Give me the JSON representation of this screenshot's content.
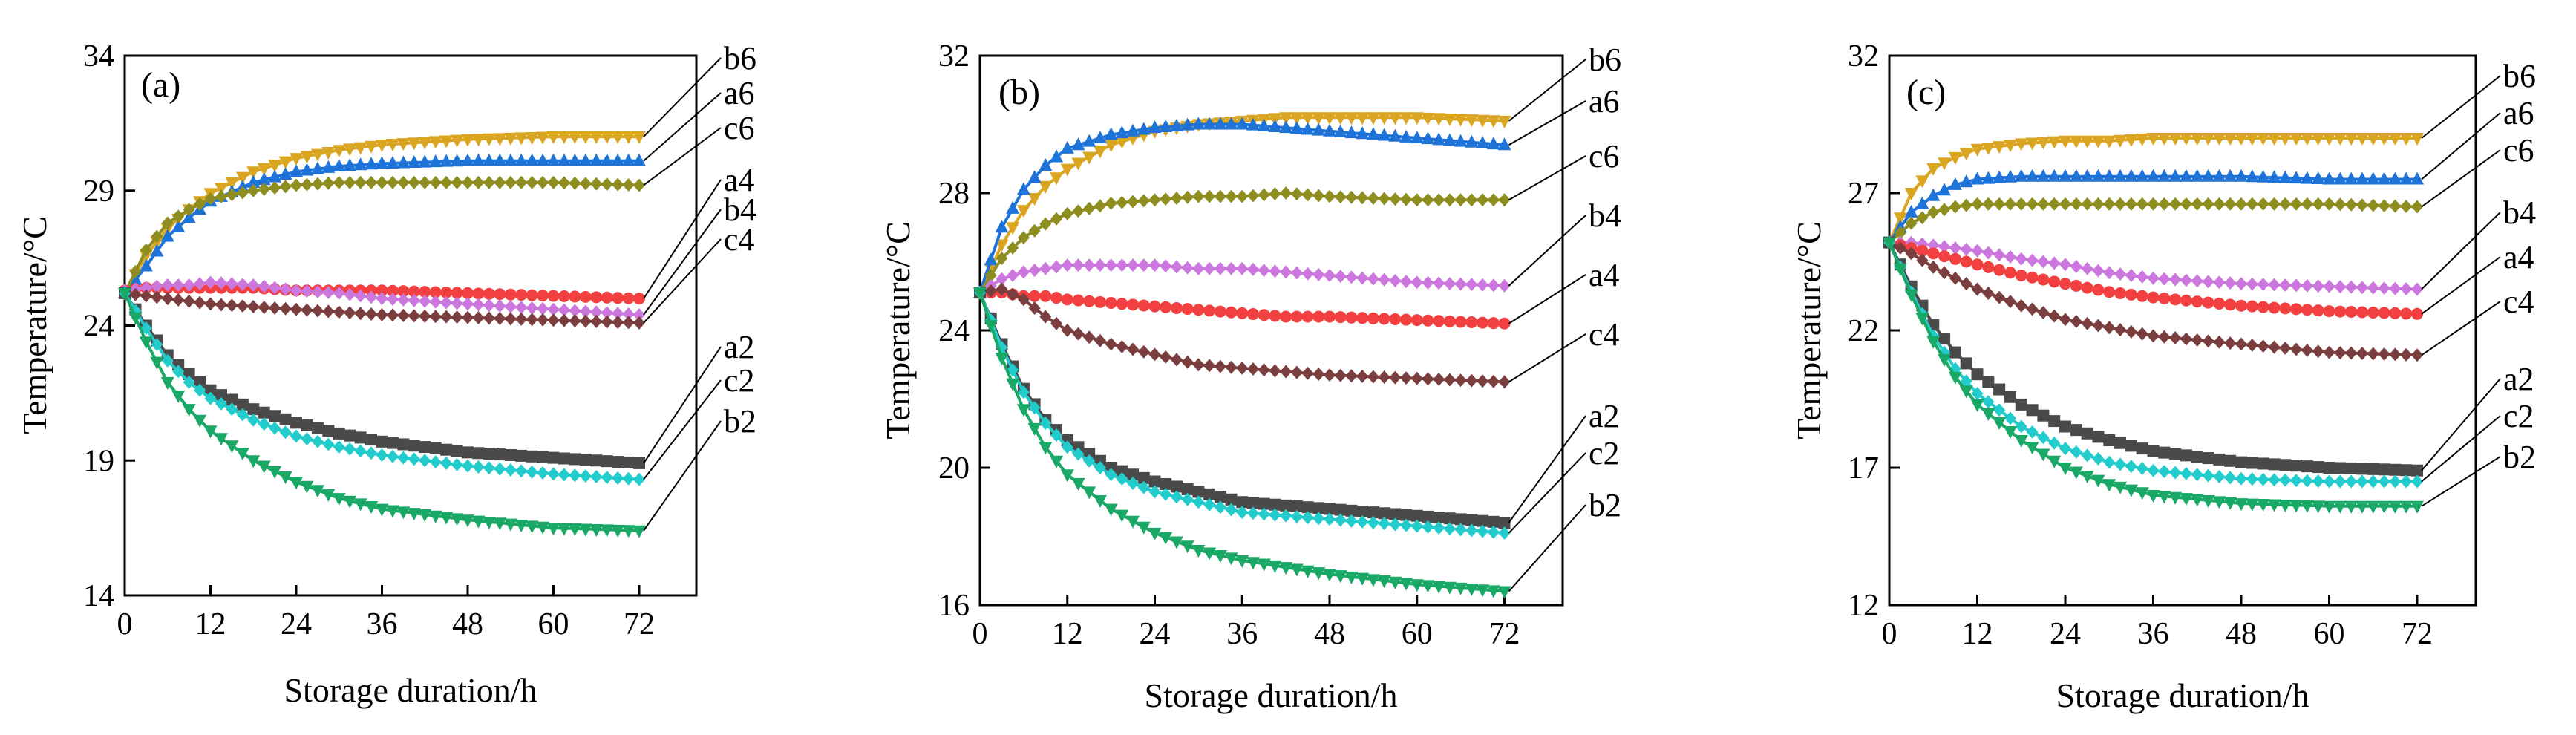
{
  "chart_data": [
    {
      "type": "line",
      "panel_label": "(a)",
      "xlabel": "Storage duration/h",
      "ylabel": "Temperature/°C",
      "xlim": [
        0,
        80
      ],
      "ylim": [
        14,
        34
      ],
      "xticks": [
        "0",
        "12",
        "24",
        "36",
        "48",
        "60",
        "72"
      ],
      "yticks": [
        "14",
        "19",
        "24",
        "29",
        "34"
      ],
      "x": [
        0,
        3,
        6,
        9,
        12,
        18,
        24,
        30,
        36,
        48,
        60,
        72
      ],
      "series": [
        {
          "name": "b6",
          "color": "#DAA520",
          "marker": "tri-down",
          "values": [
            25.2,
            26.6,
            27.6,
            28.3,
            28.9,
            29.7,
            30.2,
            30.5,
            30.7,
            30.9,
            31.0,
            31.0
          ]
        },
        {
          "name": "a6",
          "color": "#1E73D8",
          "marker": "tri-up",
          "values": [
            25.2,
            26.2,
            27.3,
            28.0,
            28.6,
            29.3,
            29.7,
            29.9,
            30.0,
            30.1,
            30.1,
            30.1
          ]
        },
        {
          "name": "c6",
          "color": "#8E8E20",
          "marker": "diamond",
          "values": [
            25.2,
            26.8,
            27.8,
            28.3,
            28.7,
            29.0,
            29.2,
            29.3,
            29.3,
            29.3,
            29.3,
            29.2
          ]
        },
        {
          "name": "a4",
          "color": "#F23F3F",
          "marker": "circle",
          "values": [
            25.3,
            25.4,
            25.4,
            25.4,
            25.4,
            25.4,
            25.3,
            25.3,
            25.3,
            25.2,
            25.1,
            25.0
          ]
        },
        {
          "name": "b4",
          "color": "#CC77DD",
          "marker": "diamond",
          "values": [
            25.3,
            25.4,
            25.5,
            25.5,
            25.6,
            25.5,
            25.3,
            25.2,
            25.0,
            24.8,
            24.6,
            24.4
          ]
        },
        {
          "name": "c4",
          "color": "#7A3E3E",
          "marker": "diamond",
          "values": [
            25.2,
            25.1,
            25.0,
            24.9,
            24.8,
            24.7,
            24.6,
            24.5,
            24.4,
            24.3,
            24.2,
            24.1
          ]
        },
        {
          "name": "a2",
          "color": "#4A4A4A",
          "marker": "square",
          "values": [
            25.2,
            24.0,
            22.9,
            22.2,
            21.6,
            20.9,
            20.4,
            20.0,
            19.7,
            19.3,
            19.1,
            18.9
          ]
        },
        {
          "name": "c2",
          "color": "#22CCCC",
          "marker": "diamond",
          "values": [
            25.2,
            23.9,
            22.7,
            21.9,
            21.3,
            20.5,
            19.9,
            19.5,
            19.2,
            18.8,
            18.5,
            18.3
          ]
        },
        {
          "name": "b2",
          "color": "#19A866",
          "marker": "tri-down",
          "values": [
            25.2,
            23.4,
            21.9,
            20.9,
            20.1,
            19.0,
            18.2,
            17.6,
            17.2,
            16.8,
            16.5,
            16.4
          ]
        }
      ]
    },
    {
      "type": "line",
      "panel_label": "(b)",
      "xlabel": "Storage duration/h",
      "ylabel": "Temperature/°C",
      "xlim": [
        0,
        80
      ],
      "ylim": [
        16,
        32
      ],
      "xticks": [
        "0",
        "12",
        "24",
        "36",
        "48",
        "60",
        "72"
      ],
      "yticks": [
        "16",
        "20",
        "24",
        "28",
        "32"
      ],
      "x": [
        0,
        3,
        6,
        9,
        12,
        18,
        24,
        30,
        36,
        42,
        48,
        60,
        72
      ],
      "series": [
        {
          "name": "b6",
          "color": "#DAA520",
          "marker": "tri-down",
          "values": [
            25.1,
            26.5,
            27.5,
            28.2,
            28.7,
            29.4,
            29.8,
            30.0,
            30.1,
            30.2,
            30.2,
            30.2,
            30.1
          ]
        },
        {
          "name": "a6",
          "color": "#1E73D8",
          "marker": "tri-up",
          "values": [
            25.1,
            27.0,
            28.1,
            28.8,
            29.3,
            29.7,
            29.9,
            30.0,
            30.0,
            29.9,
            29.8,
            29.6,
            29.4
          ]
        },
        {
          "name": "c6",
          "color": "#8E8E20",
          "marker": "diamond",
          "values": [
            25.1,
            26.1,
            26.7,
            27.1,
            27.4,
            27.7,
            27.8,
            27.9,
            27.9,
            28.0,
            27.9,
            27.8,
            27.8
          ]
        },
        {
          "name": "b4",
          "color": "#CC77DD",
          "marker": "diamond",
          "values": [
            25.1,
            25.5,
            25.7,
            25.8,
            25.9,
            25.9,
            25.9,
            25.8,
            25.8,
            25.7,
            25.6,
            25.4,
            25.3
          ]
        },
        {
          "name": "a4",
          "color": "#F23F3F",
          "marker": "circle",
          "values": [
            25.1,
            25.1,
            25.0,
            25.0,
            24.9,
            24.8,
            24.7,
            24.6,
            24.5,
            24.4,
            24.4,
            24.3,
            24.2
          ]
        },
        {
          "name": "c4",
          "color": "#7A3E3E",
          "marker": "diamond",
          "values": [
            25.1,
            25.2,
            24.9,
            24.4,
            24.0,
            23.6,
            23.3,
            23.0,
            22.9,
            22.8,
            22.7,
            22.6,
            22.5
          ]
        },
        {
          "name": "a2",
          "color": "#4A4A4A",
          "marker": "square",
          "values": [
            25.1,
            23.6,
            22.3,
            21.4,
            20.8,
            20.0,
            19.6,
            19.3,
            19.0,
            18.9,
            18.8,
            18.6,
            18.4
          ]
        },
        {
          "name": "c2",
          "color": "#22CCCC",
          "marker": "diamond",
          "values": [
            25.1,
            23.5,
            22.2,
            21.3,
            20.6,
            19.8,
            19.3,
            19.0,
            18.7,
            18.6,
            18.5,
            18.3,
            18.1
          ]
        },
        {
          "name": "b2",
          "color": "#19A866",
          "marker": "tri-down",
          "values": [
            25.1,
            23.2,
            21.7,
            20.6,
            19.8,
            18.8,
            18.1,
            17.6,
            17.3,
            17.1,
            16.9,
            16.6,
            16.4
          ]
        }
      ]
    },
    {
      "type": "line",
      "panel_label": "(c)",
      "xlabel": "Storage duration/h",
      "ylabel": "Temperature/°C",
      "xlim": [
        0,
        80
      ],
      "ylim": [
        12,
        32
      ],
      "xticks": [
        "0",
        "12",
        "24",
        "36",
        "48",
        "60",
        "72"
      ],
      "yticks": [
        "12",
        "17",
        "22",
        "27",
        "32"
      ],
      "x": [
        0,
        3,
        6,
        9,
        12,
        18,
        24,
        30,
        36,
        48,
        60,
        72
      ],
      "series": [
        {
          "name": "b6",
          "color": "#DAA520",
          "marker": "tri-down",
          "values": [
            25.2,
            27.0,
            27.9,
            28.3,
            28.6,
            28.8,
            28.9,
            28.9,
            29.0,
            29.0,
            29.0,
            29.0
          ]
        },
        {
          "name": "a6",
          "color": "#1E73D8",
          "marker": "tri-up",
          "values": [
            25.2,
            26.3,
            26.9,
            27.3,
            27.5,
            27.6,
            27.6,
            27.6,
            27.6,
            27.6,
            27.5,
            27.5
          ]
        },
        {
          "name": "c6",
          "color": "#8E8E20",
          "marker": "diamond",
          "values": [
            25.2,
            25.9,
            26.3,
            26.5,
            26.6,
            26.6,
            26.6,
            26.6,
            26.6,
            26.6,
            26.6,
            26.5
          ]
        },
        {
          "name": "b4",
          "color": "#CC77DD",
          "marker": "diamond",
          "values": [
            25.2,
            25.2,
            25.1,
            25.0,
            24.9,
            24.6,
            24.4,
            24.1,
            23.9,
            23.7,
            23.6,
            23.5
          ]
        },
        {
          "name": "a4",
          "color": "#F23F3F",
          "marker": "circle",
          "values": [
            25.2,
            25.0,
            24.8,
            24.6,
            24.4,
            24.0,
            23.7,
            23.4,
            23.2,
            22.9,
            22.7,
            22.6
          ]
        },
        {
          "name": "c4",
          "color": "#7A3E3E",
          "marker": "diamond",
          "values": [
            25.2,
            24.8,
            24.3,
            23.9,
            23.5,
            22.9,
            22.4,
            22.1,
            21.8,
            21.5,
            21.2,
            21.1
          ]
        },
        {
          "name": "a2",
          "color": "#4A4A4A",
          "marker": "square",
          "values": [
            25.2,
            23.6,
            22.2,
            21.2,
            20.4,
            19.3,
            18.5,
            18.0,
            17.6,
            17.2,
            17.0,
            16.9
          ]
        },
        {
          "name": "c2",
          "color": "#22CCCC",
          "marker": "diamond",
          "values": [
            25.2,
            23.4,
            21.8,
            20.6,
            19.7,
            18.5,
            17.7,
            17.2,
            16.9,
            16.6,
            16.5,
            16.5
          ]
        },
        {
          "name": "b2",
          "color": "#19A866",
          "marker": "tri-down",
          "values": [
            25.2,
            23.3,
            21.6,
            20.3,
            19.3,
            18.0,
            17.0,
            16.4,
            16.0,
            15.7,
            15.6,
            15.6
          ]
        }
      ]
    }
  ]
}
